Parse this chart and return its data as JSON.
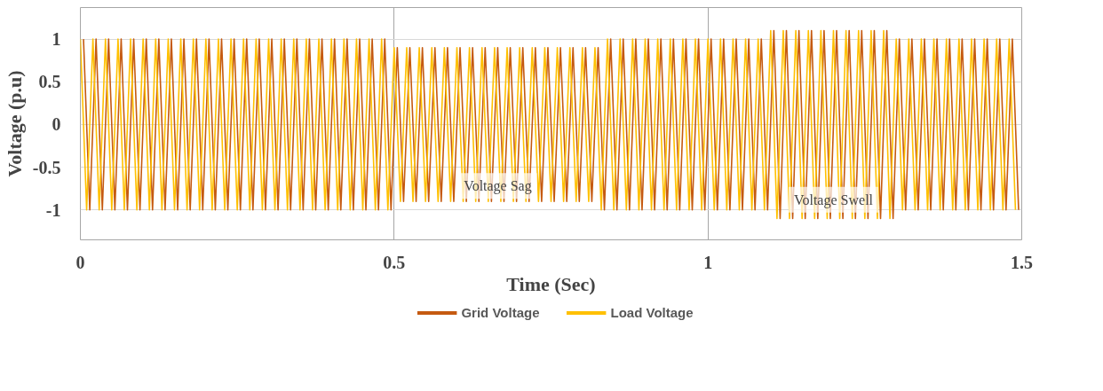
{
  "chart_data": {
    "type": "line",
    "xlabel": "Time (Sec)",
    "ylabel": "Voltage (p.u)",
    "xlim": [
      0,
      1.5
    ],
    "xticks": [
      0,
      0.5,
      1,
      1.5
    ],
    "ylim": [
      -1.35,
      1.37
    ],
    "yticks": [
      -1,
      -0.5,
      0,
      0.5,
      1
    ],
    "grid": true,
    "legend": "bottom",
    "line_style": "solid",
    "marker": "none",
    "annotations": [
      {
        "text": "Voltage Sag",
        "x": 0.665,
        "y": -0.72
      },
      {
        "text": "Voltage Swell",
        "x": 1.2,
        "y": -0.88
      }
    ],
    "series": [
      {
        "name": "Grid Voltage",
        "color": "#c55a11",
        "x": [
          0.005,
          0.015,
          0.025,
          0.035,
          0.045,
          0.055,
          0.065,
          0.075,
          0.085,
          0.095,
          0.105,
          0.115,
          0.125,
          0.135,
          0.145,
          0.155,
          0.165,
          0.175,
          0.185,
          0.195,
          0.205,
          0.215,
          0.225,
          0.235,
          0.245,
          0.255,
          0.265,
          0.275,
          0.285,
          0.295,
          0.305,
          0.315,
          0.325,
          0.335,
          0.345,
          0.355,
          0.365,
          0.375,
          0.385,
          0.395,
          0.405,
          0.415,
          0.425,
          0.435,
          0.445,
          0.455,
          0.465,
          0.475,
          0.485,
          0.495,
          0.505,
          0.515,
          0.525,
          0.535,
          0.545,
          0.555,
          0.565,
          0.575,
          0.585,
          0.595,
          0.605,
          0.615,
          0.625,
          0.635,
          0.645,
          0.655,
          0.665,
          0.675,
          0.685,
          0.695,
          0.705,
          0.715,
          0.725,
          0.735,
          0.745,
          0.755,
          0.765,
          0.775,
          0.785,
          0.795,
          0.805,
          0.815,
          0.825,
          0.835,
          0.845,
          0.855,
          0.865,
          0.875,
          0.885,
          0.895,
          0.905,
          0.915,
          0.925,
          0.935,
          0.945,
          0.955,
          0.965,
          0.975,
          0.985,
          0.995,
          1.005,
          1.015,
          1.025,
          1.035,
          1.045,
          1.055,
          1.065,
          1.075,
          1.085,
          1.095,
          1.105,
          1.115,
          1.125,
          1.135,
          1.145,
          1.155,
          1.165,
          1.175,
          1.185,
          1.195,
          1.205,
          1.215,
          1.225,
          1.235,
          1.245,
          1.255,
          1.265,
          1.275,
          1.285,
          1.295,
          1.305,
          1.315,
          1.325,
          1.335,
          1.345,
          1.355,
          1.365,
          1.375,
          1.385,
          1.395,
          1.405,
          1.415,
          1.425,
          1.435,
          1.445,
          1.455,
          1.465,
          1.475,
          1.485,
          1.495
        ],
        "values": [
          1,
          -1,
          1,
          -1,
          1,
          -1,
          1,
          -1,
          1,
          -1,
          1,
          -1,
          1,
          -1,
          1,
          -1,
          1,
          -1,
          1,
          -1,
          1,
          -1,
          1,
          -1,
          1,
          -1,
          1,
          -1,
          1,
          -1,
          1,
          -1,
          1,
          -1,
          1,
          -1,
          1,
          -1,
          1,
          -1,
          1,
          -1,
          1,
          -1,
          1,
          -1,
          1,
          -1,
          1,
          -1,
          0.9,
          -0.9,
          0.9,
          -0.9,
          0.9,
          -0.9,
          0.9,
          -0.9,
          0.9,
          -0.9,
          0.9,
          -0.9,
          0.9,
          -0.9,
          0.9,
          -0.9,
          0.9,
          -0.9,
          0.9,
          -0.9,
          0.9,
          -0.9,
          0.9,
          -0.9,
          0.9,
          -0.9,
          0.9,
          -0.9,
          0.9,
          -0.9,
          0.9,
          -0.9,
          0.9,
          -1,
          1,
          -1,
          1,
          -1,
          1,
          -1,
          1,
          -1,
          1,
          -1,
          1,
          -1,
          1,
          -1,
          1,
          -1,
          1,
          -1,
          1,
          -1,
          1,
          -1,
          1,
          -1,
          1,
          -1,
          1.1,
          -1.1,
          1.1,
          -1.1,
          1.1,
          -1.1,
          1.1,
          -1.1,
          1.1,
          -1.1,
          1.1,
          -1.1,
          1.1,
          -1.1,
          1.1,
          -1.1,
          1.1,
          -1.1,
          1.1,
          -1.1,
          1,
          -1,
          1,
          -1,
          1,
          -1,
          1,
          -1,
          1,
          -1,
          1,
          -1,
          1,
          -1,
          1,
          -1,
          1,
          -1,
          1,
          -1
        ]
      },
      {
        "name": "Load Voltage",
        "color": "#ffc000",
        "x": [
          0,
          0.01,
          0.02,
          0.03,
          0.04,
          0.05,
          0.06,
          0.07,
          0.08,
          0.09,
          0.1,
          0.11,
          0.12,
          0.13,
          0.14,
          0.15,
          0.16,
          0.17,
          0.18,
          0.19,
          0.2,
          0.21,
          0.22,
          0.23,
          0.24,
          0.25,
          0.26,
          0.27,
          0.28,
          0.29,
          0.3,
          0.31,
          0.32,
          0.33,
          0.34,
          0.35,
          0.36,
          0.37,
          0.38,
          0.39,
          0.4,
          0.41,
          0.42,
          0.43,
          0.44,
          0.45,
          0.46,
          0.47,
          0.48,
          0.49,
          0.5,
          0.51,
          0.52,
          0.53,
          0.54,
          0.55,
          0.56,
          0.57,
          0.58,
          0.59,
          0.6,
          0.61,
          0.62,
          0.63,
          0.64,
          0.65,
          0.66,
          0.67,
          0.68,
          0.69,
          0.7,
          0.71,
          0.72,
          0.73,
          0.74,
          0.75,
          0.76,
          0.77,
          0.78,
          0.79,
          0.8,
          0.81,
          0.82,
          0.83,
          0.84,
          0.85,
          0.86,
          0.87,
          0.88,
          0.89,
          0.9,
          0.91,
          0.92,
          0.93,
          0.94,
          0.95,
          0.96,
          0.97,
          0.98,
          0.99,
          1,
          1.01,
          1.02,
          1.03,
          1.04,
          1.05,
          1.06,
          1.07,
          1.08,
          1.09,
          1.1,
          1.11,
          1.12,
          1.13,
          1.14,
          1.15,
          1.16,
          1.17,
          1.18,
          1.19,
          1.2,
          1.21,
          1.22,
          1.23,
          1.24,
          1.25,
          1.26,
          1.27,
          1.28,
          1.29,
          1.3,
          1.31,
          1.32,
          1.33,
          1.34,
          1.35,
          1.36,
          1.37,
          1.38,
          1.39,
          1.4,
          1.41,
          1.42,
          1.43,
          1.44,
          1.45,
          1.46,
          1.47,
          1.48,
          1.49
        ],
        "values": [
          1,
          -1,
          1,
          -1,
          1,
          -1,
          1,
          -1,
          1,
          -1,
          1,
          -1,
          1,
          -1,
          1,
          -1,
          1,
          -1,
          1,
          -1,
          1,
          -1,
          1,
          -1,
          1,
          -1,
          1,
          -1,
          1,
          -1,
          1,
          -1,
          1,
          -1,
          1,
          -1,
          1,
          -1,
          1,
          -1,
          1,
          -1,
          1,
          -1,
          1,
          -1,
          1,
          -1,
          1,
          -1,
          0.9,
          -0.9,
          0.9,
          -0.9,
          0.9,
          -0.9,
          0.9,
          -0.9,
          0.9,
          -0.9,
          0.9,
          -0.9,
          0.9,
          -0.9,
          0.9,
          -0.9,
          0.9,
          -0.9,
          0.9,
          -0.9,
          0.9,
          -0.9,
          0.9,
          -0.9,
          0.9,
          -0.9,
          0.9,
          -0.9,
          0.9,
          -0.9,
          0.9,
          -0.9,
          0.9,
          -1,
          1,
          -1,
          1,
          -1,
          1,
          -1,
          1,
          -1,
          1,
          -1,
          1,
          -1,
          1,
          -1,
          1,
          -1,
          1,
          -1,
          1,
          -1,
          1,
          -1,
          1,
          -1,
          1,
          -1,
          1.1,
          -1.1,
          1.1,
          -1.1,
          1.1,
          -1.1,
          1.1,
          -1.1,
          1.1,
          -1.1,
          1.1,
          -1.1,
          1.1,
          -1.1,
          1.1,
          -1.1,
          1.1,
          -1.1,
          1.1,
          -1.1,
          1,
          -1,
          1,
          -1,
          1,
          -1,
          1,
          -1,
          1,
          -1,
          1,
          -1,
          1,
          -1,
          1,
          -1,
          1,
          -1,
          1,
          -1
        ]
      }
    ]
  }
}
